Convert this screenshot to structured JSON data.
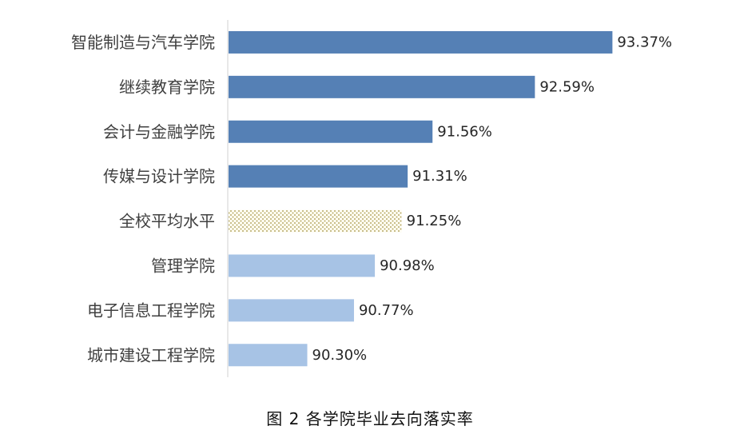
{
  "caption": "图 2 各学院毕业去向落实率",
  "chart_data": {
    "type": "bar",
    "orientation": "horizontal",
    "categories": [
      "智能制造与汽车学院",
      "继续教育学院",
      "会计与金融学院",
      "传媒与设计学院",
      "全校平均水平",
      "管理学院",
      "电子信息工程学院",
      "城市建设工程学院"
    ],
    "values": [
      93.37,
      92.59,
      91.56,
      91.31,
      91.25,
      90.98,
      90.77,
      90.3
    ],
    "value_labels": [
      "93.37%",
      "92.59%",
      "91.56%",
      "91.31%",
      "91.25%",
      "90.98%",
      "90.77%",
      "90.30%"
    ],
    "bar_styles": [
      "above",
      "above",
      "above",
      "above",
      "average",
      "below",
      "below",
      "below"
    ],
    "xlim": [
      89.5,
      93.56
    ],
    "grid": false,
    "legend": "none",
    "colors": {
      "above": "#5580b5",
      "below": "#a7c3e5",
      "average": "#c5b87a",
      "axis": "#d0d0d0"
    }
  }
}
